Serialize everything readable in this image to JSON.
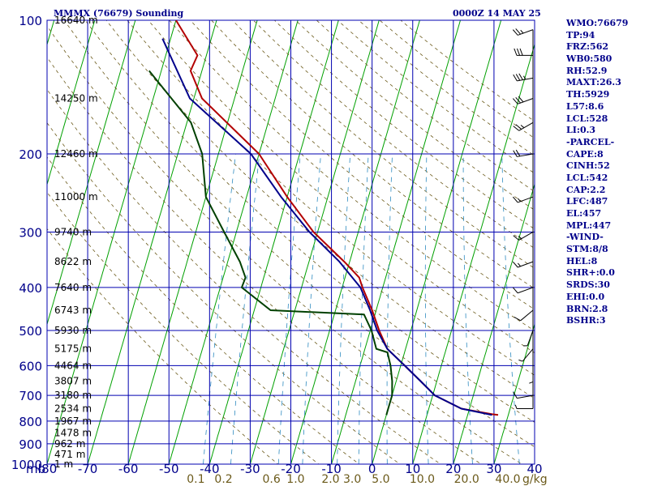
{
  "chart_data": {
    "type": "line",
    "title": "MMMX (76679) Sounding",
    "time_label": "0000Z 14 MAY 25",
    "xlim": [
      -80,
      40
    ],
    "ylim": [
      1000,
      100
    ],
    "pressure_ticks": [
      100,
      200,
      300,
      400,
      500,
      600,
      700,
      800,
      900,
      1000
    ],
    "temp_ticks": [
      -80,
      -70,
      -60,
      -50,
      -40,
      -30,
      -20,
      -10,
      0,
      10,
      20,
      30,
      40
    ],
    "temp_tick_labels": [
      "-80",
      "-70",
      "-60",
      "-50",
      "-40",
      "-30",
      "-20",
      "-10",
      "0",
      "10",
      "20",
      "30",
      "40"
    ],
    "pressure_axis_unit": "mb",
    "height_labels": [
      {
        "p": 100,
        "text": "16640 m"
      },
      {
        "p": 150,
        "text": "14250 m"
      },
      {
        "p": 200,
        "text": "12460 m"
      },
      {
        "p": 250,
        "text": "11000 m"
      },
      {
        "p": 300,
        "text": "9740 m"
      },
      {
        "p": 350,
        "text": "8622 m"
      },
      {
        "p": 400,
        "text": "7640 m"
      },
      {
        "p": 450,
        "text": "6743 m"
      },
      {
        "p": 500,
        "text": "5930 m"
      },
      {
        "p": 550,
        "text": "5175 m"
      },
      {
        "p": 600,
        "text": "4464 m"
      },
      {
        "p": 650,
        "text": "3807 m"
      },
      {
        "p": 700,
        "text": "3180 m"
      },
      {
        "p": 750,
        "text": "2534 m"
      },
      {
        "p": 800,
        "text": "1967 m"
      },
      {
        "p": 850,
        "text": "1478 m"
      },
      {
        "p": 900,
        "text": "962 m"
      },
      {
        "p": 950,
        "text": "471 m"
      },
      {
        "p": 1000,
        "text": "1 m"
      }
    ],
    "mixing_ratio_labels": [
      {
        "value": 0.1,
        "text": "0.1"
      },
      {
        "value": 0.2,
        "text": "0.2"
      },
      {
        "value": 0.6,
        "text": "0.6"
      },
      {
        "value": 1.0,
        "text": "1.0"
      },
      {
        "value": 2.0,
        "text": "2.0"
      },
      {
        "value": 3.0,
        "text": "3.0"
      },
      {
        "value": 5.0,
        "text": "5.0"
      },
      {
        "value": 10.0,
        "text": "10.0"
      },
      {
        "value": 20.0,
        "text": "20.0"
      },
      {
        "value": 40.0,
        "text": "40.0"
      }
    ],
    "mixing_ratio_unit": "g/kg",
    "series": [
      {
        "color": "#b30000",
        "points": [
          [
            -80,
            100
          ],
          [
            -72.2,
            120
          ],
          [
            -72.8,
            130
          ],
          [
            -68,
            150
          ],
          [
            -50,
            200
          ],
          [
            -40,
            250
          ],
          [
            -31,
            300
          ],
          [
            -21.3,
            350
          ],
          [
            -16.5,
            380
          ],
          [
            -15,
            400
          ],
          [
            -11,
            450
          ],
          [
            -7.8,
            500
          ],
          [
            -4.5,
            550
          ],
          [
            1,
            600
          ],
          [
            6,
            650
          ],
          [
            10.5,
            700
          ],
          [
            18,
            750
          ],
          [
            26,
            772
          ],
          [
            27.5,
            775
          ]
        ]
      },
      {
        "color": "#00008b",
        "points": [
          [
            -82,
            110
          ],
          [
            -71,
            150
          ],
          [
            -52,
            200
          ],
          [
            -41.5,
            250
          ],
          [
            -32,
            300
          ],
          [
            -22.5,
            350
          ],
          [
            -15.5,
            400
          ],
          [
            -11.5,
            450
          ],
          [
            -8.3,
            500
          ],
          [
            -4.5,
            550
          ],
          [
            1,
            600
          ],
          [
            6,
            650
          ],
          [
            10.5,
            700
          ],
          [
            18,
            750
          ],
          [
            26,
            775
          ]
        ]
      },
      {
        "color": "#004000",
        "points": [
          [
            -83,
            130
          ],
          [
            -69,
            170
          ],
          [
            -64,
            200
          ],
          [
            -60,
            250
          ],
          [
            -53,
            300
          ],
          [
            -47,
            350
          ],
          [
            -44.5,
            380
          ],
          [
            -44.7,
            400
          ],
          [
            -36,
            450
          ],
          [
            -12.7,
            460
          ],
          [
            -9.7,
            500
          ],
          [
            -7.2,
            550
          ],
          [
            -4.2,
            560
          ],
          [
            -2.5,
            600
          ],
          [
            -1,
            650
          ],
          [
            0,
            700
          ],
          [
            0,
            750
          ],
          [
            0,
            775
          ]
        ]
      }
    ],
    "wind_barbs": [
      {
        "p": 105,
        "dir": 250,
        "spd": 25
      },
      {
        "p": 120,
        "dir": 270,
        "spd": 30
      },
      {
        "p": 135,
        "dir": 260,
        "spd": 35
      },
      {
        "p": 150,
        "dir": 250,
        "spd": 30
      },
      {
        "p": 170,
        "dir": 240,
        "spd": 25
      },
      {
        "p": 200,
        "dir": 260,
        "spd": 20
      },
      {
        "p": 250,
        "dir": 250,
        "spd": 15
      },
      {
        "p": 300,
        "dir": 240,
        "spd": 15
      },
      {
        "p": 350,
        "dir": 250,
        "spd": 15
      },
      {
        "p": 400,
        "dir": 250,
        "spd": 10
      },
      {
        "p": 450,
        "dir": 230,
        "spd": 10
      },
      {
        "p": 500,
        "dir": 200,
        "spd": 5
      },
      {
        "p": 550,
        "dir": 220,
        "spd": 5
      },
      {
        "p": 600,
        "dir": 180,
        "spd": 5
      },
      {
        "p": 700,
        "dir": 260,
        "spd": 10
      },
      {
        "p": 750,
        "dir": 270,
        "spd": 5
      }
    ],
    "grid": true
  },
  "params": [
    "WMO:76679",
    "TP:94",
    "FRZ:562",
    "WB0:580",
    "RH:52.9",
    "MAXT:26.3",
    "TH:5929",
    "L57:8.6",
    "LCL:528",
    "LI:0.3",
    "-PARCEL-",
    "CAPE:8",
    "CINH:52",
    "LCL:542",
    "CAP:2.2",
    "LFC:487",
    "EL:457",
    "MPL:447",
    "-WIND-",
    "STM:8/8",
    "HEL:8",
    "SHR+:0.0",
    "SRDS:30",
    "EHI:0.0",
    "BRN:2.8",
    "BSHR:3"
  ]
}
